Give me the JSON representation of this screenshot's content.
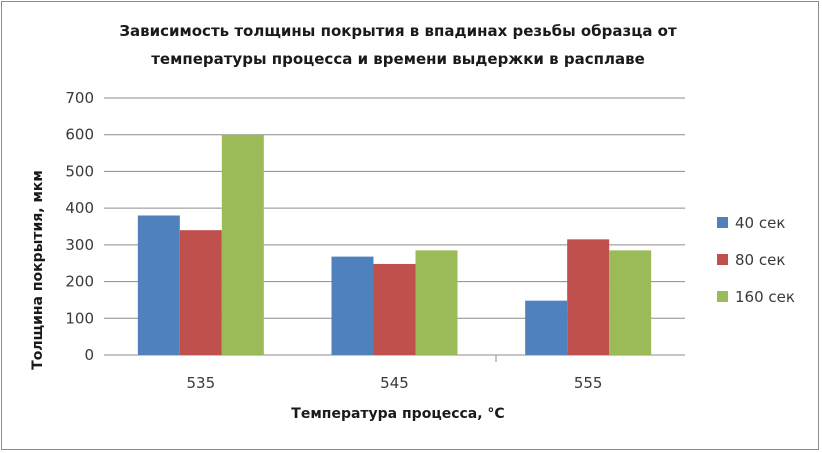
{
  "chart_data": {
    "type": "bar",
    "title_lines": [
      "Зависимость толщины покрытия в впадинах резьбы образца от",
      "температуры процесса и времени выдержки в расплаве"
    ],
    "xlabel": "Температура процесса, °С",
    "ylabel": "Толщина покрытия, мкм",
    "categories": [
      "535",
      "545",
      "555"
    ],
    "ylim": [
      0,
      700
    ],
    "yticks": [
      0,
      100,
      200,
      300,
      400,
      500,
      600,
      700
    ],
    "grid": true,
    "legend_position": "right",
    "series": [
      {
        "name": "40 сек",
        "color": "#4f81bd",
        "values": [
          380,
          268,
          148
        ]
      },
      {
        "name": "80 сек",
        "color": "#c0504d",
        "values": [
          340,
          248,
          315
        ]
      },
      {
        "name": "160 сек",
        "color": "#9bbb59",
        "values": [
          600,
          285,
          285
        ]
      }
    ]
  }
}
